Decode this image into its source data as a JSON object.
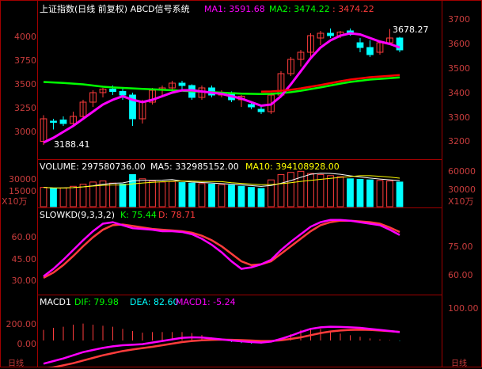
{
  "main": {
    "title": "上证指数(日线 前复权) ABCD信号系统",
    "ma1_text": "MA1: 3591.68",
    "ma2_text": "MA2: 3474.22",
    "ma3_text": ": 3474.22",
    "left_ticks": [
      "4000",
      "3750",
      "3500",
      "3250",
      "3000"
    ],
    "right_ticks": [
      "3700",
      "3600",
      "3500",
      "3400",
      "3300",
      "3200"
    ],
    "low_label": "3188.41",
    "high_label": "3678.27"
  },
  "volume": {
    "label_text": "VOLUME: 297580736.00",
    "ma5_text": "MA5: 332985152.00",
    "ma10_text": "MA10: 394108928.00",
    "left_ticks": [
      "30000",
      "15000"
    ],
    "right_ticks": [
      "60000",
      "30000"
    ],
    "unit": "X10万"
  },
  "kd": {
    "label_text": "SLOWKD(9,3,3,2)",
    "k_text": "K: 75.44",
    "d_text": "D: 78.71",
    "left_ticks": [
      "60.00",
      "45.00",
      "30.00"
    ],
    "right_ticks": [
      "75.00",
      "60.00"
    ]
  },
  "macd": {
    "label_text": "MACD1",
    "dif_text": "DIF: 79.98",
    "dea_text": "DEA: 82.60",
    "macd_text": "MACD1: -5.24",
    "left_ticks": [
      "200.00",
      "0.00"
    ],
    "right_ticks": [
      "100.00"
    ]
  },
  "bottom": {
    "left_label": "日线",
    "right_label": "日线"
  },
  "colors": {
    "bg": "#000000",
    "grid": "#a00000",
    "up": "#ff3c3c",
    "down": "#00ffff",
    "ma1": "#ff00ff",
    "ma2": "#00ff00",
    "ma3": "#ff0000",
    "text_label": "#ffffff"
  },
  "chart_data": {
    "type": "candlestick",
    "candles": [
      {
        "o": 3205,
        "h": 3315,
        "l": 3190,
        "c": 3300
      },
      {
        "o": 3290,
        "h": 3300,
        "l": 3255,
        "c": 3285
      },
      {
        "o": 3295,
        "h": 3310,
        "l": 3270,
        "c": 3280
      },
      {
        "o": 3280,
        "h": 3330,
        "l": 3270,
        "c": 3310
      },
      {
        "o": 3310,
        "h": 3380,
        "l": 3300,
        "c": 3370
      },
      {
        "o": 3370,
        "h": 3420,
        "l": 3350,
        "c": 3410
      },
      {
        "o": 3410,
        "h": 3430,
        "l": 3390,
        "c": 3425
      },
      {
        "o": 3425,
        "h": 3440,
        "l": 3400,
        "c": 3415
      },
      {
        "o": 3415,
        "h": 3430,
        "l": 3380,
        "c": 3400
      },
      {
        "o": 3400,
        "h": 3410,
        "l": 3270,
        "c": 3300
      },
      {
        "o": 3300,
        "h": 3380,
        "l": 3280,
        "c": 3370
      },
      {
        "o": 3370,
        "h": 3430,
        "l": 3360,
        "c": 3420
      },
      {
        "o": 3420,
        "h": 3440,
        "l": 3390,
        "c": 3430
      },
      {
        "o": 3430,
        "h": 3460,
        "l": 3420,
        "c": 3450
      },
      {
        "o": 3450,
        "h": 3460,
        "l": 3420,
        "c": 3440
      },
      {
        "o": 3440,
        "h": 3445,
        "l": 3380,
        "c": 3390
      },
      {
        "o": 3390,
        "h": 3440,
        "l": 3380,
        "c": 3430
      },
      {
        "o": 3430,
        "h": 3440,
        "l": 3390,
        "c": 3400
      },
      {
        "o": 3400,
        "h": 3420,
        "l": 3390,
        "c": 3410
      },
      {
        "o": 3410,
        "h": 3415,
        "l": 3370,
        "c": 3380
      },
      {
        "o": 3380,
        "h": 3400,
        "l": 3350,
        "c": 3395
      },
      {
        "o": 3360,
        "h": 3370,
        "l": 3340,
        "c": 3350
      },
      {
        "o": 3340,
        "h": 3350,
        "l": 3320,
        "c": 3330
      },
      {
        "o": 3330,
        "h": 3410,
        "l": 3320,
        "c": 3400
      },
      {
        "o": 3400,
        "h": 3500,
        "l": 3390,
        "c": 3490
      },
      {
        "o": 3490,
        "h": 3560,
        "l": 3480,
        "c": 3550
      },
      {
        "o": 3550,
        "h": 3590,
        "l": 3520,
        "c": 3580
      },
      {
        "o": 3580,
        "h": 3660,
        "l": 3560,
        "c": 3650
      },
      {
        "o": 3640,
        "h": 3670,
        "l": 3610,
        "c": 3660
      },
      {
        "o": 3660,
        "h": 3680,
        "l": 3640,
        "c": 3650
      },
      {
        "o": 3650,
        "h": 3670,
        "l": 3640,
        "c": 3665
      },
      {
        "o": 3670,
        "h": 3680,
        "l": 3650,
        "c": 3655
      },
      {
        "o": 3620,
        "h": 3640,
        "l": 3580,
        "c": 3600
      },
      {
        "o": 3600,
        "h": 3630,
        "l": 3560,
        "c": 3570
      },
      {
        "o": 3580,
        "h": 3630,
        "l": 3570,
        "c": 3620
      },
      {
        "o": 3620,
        "h": 3678,
        "l": 3610,
        "c": 3640
      },
      {
        "o": 3640,
        "h": 3645,
        "l": 3580,
        "c": 3590
      }
    ],
    "ma1": [
      3200,
      3220,
      3245,
      3270,
      3300,
      3330,
      3360,
      3380,
      3395,
      3380,
      3370,
      3380,
      3395,
      3410,
      3420,
      3420,
      3415,
      3410,
      3405,
      3395,
      3385,
      3370,
      3355,
      3360,
      3395,
      3445,
      3500,
      3555,
      3600,
      3630,
      3650,
      3660,
      3655,
      3640,
      3625,
      3615,
      3600
    ],
    "ma2": [
      3455,
      3453,
      3451,
      3448,
      3445,
      3440,
      3435,
      3432,
      3430,
      3428,
      3426,
      3424,
      3422,
      3420,
      3418,
      3416,
      3414,
      3412,
      3410,
      3408,
      3406,
      3405,
      3404,
      3405,
      3408,
      3412,
      3418,
      3425,
      3432,
      3440,
      3448,
      3455,
      3460,
      3465,
      3468,
      3471,
      3474
    ],
    "ylim": [
      3150,
      3740
    ],
    "volume": [
      180,
      170,
      175,
      190,
      210,
      230,
      240,
      220,
      210,
      300,
      260,
      240,
      230,
      235,
      225,
      220,
      215,
      210,
      205,
      200,
      190,
      180,
      170,
      250,
      300,
      320,
      330,
      310,
      300,
      290,
      280,
      260,
      255,
      250,
      245,
      240,
      230
    ],
    "volume_colors": [
      "up",
      "down",
      "up",
      "up",
      "up",
      "up",
      "up",
      "up",
      "down",
      "down",
      "up",
      "up",
      "up",
      "up",
      "down",
      "down",
      "up",
      "down",
      "up",
      "down",
      "down",
      "down",
      "down",
      "up",
      "up",
      "up",
      "up",
      "up",
      "up",
      "up",
      "up",
      "down",
      "down",
      "down",
      "up",
      "up",
      "down"
    ],
    "kd_k": [
      20,
      30,
      42,
      55,
      68,
      80,
      90,
      92,
      88,
      84,
      83,
      82,
      80,
      80,
      79,
      76,
      70,
      62,
      52,
      40,
      30,
      32,
      36,
      42,
      55,
      66,
      76,
      86,
      92,
      95,
      95,
      94,
      92,
      90,
      88,
      82,
      75
    ],
    "kd_d": [
      18,
      25,
      35,
      47,
      60,
      72,
      82,
      88,
      89,
      87,
      85,
      83,
      82,
      81,
      80,
      78,
      74,
      68,
      60,
      50,
      40,
      35,
      36,
      40,
      50,
      60,
      70,
      80,
      88,
      92,
      94,
      94,
      93,
      92,
      90,
      85,
      79
    ],
    "dif": [
      -220,
      -195,
      -170,
      -140,
      -110,
      -90,
      -70,
      -55,
      -45,
      -40,
      -35,
      -20,
      -5,
      10,
      25,
      30,
      28,
      20,
      10,
      0,
      -8,
      -15,
      -20,
      -10,
      15,
      45,
      80,
      110,
      125,
      130,
      128,
      125,
      120,
      110,
      100,
      90,
      80
    ],
    "dea": [
      -270,
      -255,
      -235,
      -215,
      -190,
      -165,
      -140,
      -120,
      -100,
      -85,
      -72,
      -60,
      -45,
      -30,
      -15,
      -5,
      2,
      6,
      8,
      7,
      4,
      0,
      -5,
      -5,
      2,
      15,
      30,
      50,
      70,
      85,
      95,
      100,
      102,
      100,
      95,
      88,
      82
    ]
  }
}
